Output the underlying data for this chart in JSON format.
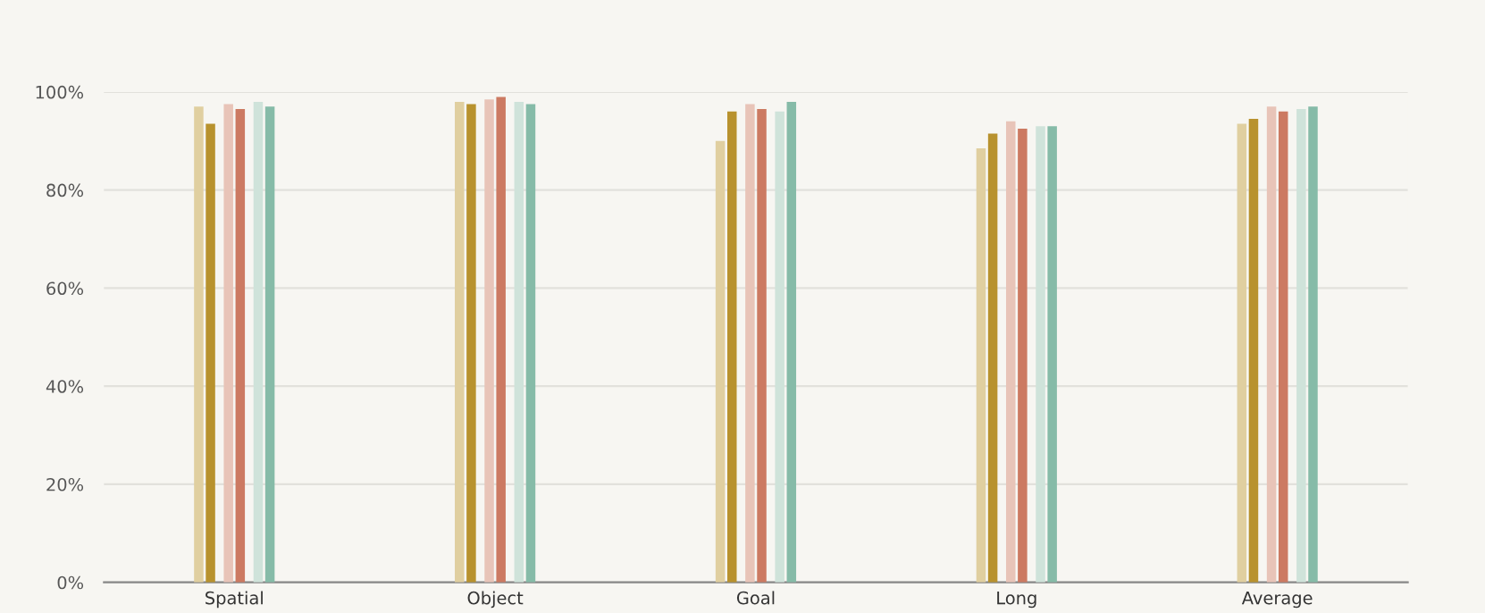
{
  "chart_data": {
    "type": "bar",
    "categories": [
      "Spatial",
      "Object",
      "Goal",
      "Long",
      "Average"
    ],
    "series": [
      {
        "color": "#e0cfa0",
        "values": [
          97,
          98,
          90,
          88.5,
          93.5
        ]
      },
      {
        "color": "#b8922e",
        "values": [
          93.5,
          97.5,
          96,
          91.5,
          94.5
        ]
      },
      {
        "color": "#e8c4b8",
        "values": [
          97.5,
          98.5,
          97.5,
          94,
          97
        ]
      },
      {
        "color": "#cc7a62",
        "values": [
          96.5,
          99,
          96.5,
          92.5,
          96
        ]
      },
      {
        "color": "#cfe3da",
        "values": [
          98,
          98,
          96,
          93,
          96.5
        ]
      },
      {
        "color": "#86bba8",
        "values": [
          97,
          97.5,
          98,
          93,
          97
        ]
      }
    ],
    "ylim": [
      0,
      100
    ],
    "yticks": [
      {
        "value": 0,
        "label": "0%"
      },
      {
        "value": 20,
        "label": "20%"
      },
      {
        "value": 40,
        "label": "40%"
      },
      {
        "value": 60,
        "label": "60%"
      },
      {
        "value": 80,
        "label": "80%"
      },
      {
        "value": 100,
        "label": "100%"
      }
    ],
    "grid": "y"
  }
}
